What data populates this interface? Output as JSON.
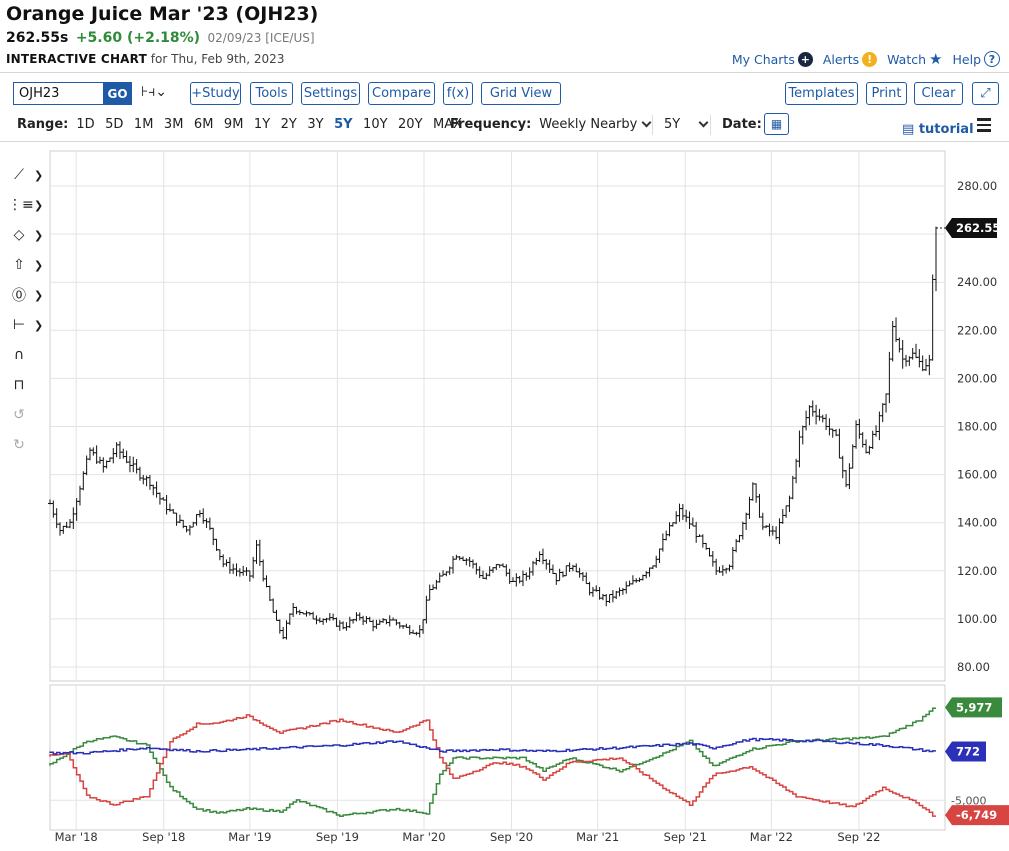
{
  "header": {
    "title": "Orange Juice Mar '23 (OJH23)",
    "last": "262.55s",
    "change": "+5.60 (+2.18%)",
    "meta": "02/09/23 [ICE/US]",
    "chart_label": "INTERACTIVE CHART",
    "chart_for": "for Thu, Feb 9th, 2023",
    "links": {
      "my_charts": "My Charts",
      "alerts": "Alerts",
      "watch": "Watch",
      "help": "Help"
    }
  },
  "toolbar": {
    "symbol": "OJH23",
    "go": "GO",
    "study": "+Study",
    "tools": "Tools",
    "settings": "Settings",
    "compare": "Compare",
    "fx": "f(x)",
    "grid_view": "Grid View",
    "templates": "Templates",
    "print": "Print",
    "clear": "Clear"
  },
  "rangebar": {
    "range_label": "Range:",
    "ranges": [
      "1D",
      "5D",
      "1M",
      "3M",
      "6M",
      "9M",
      "1Y",
      "2Y",
      "3Y",
      "5Y",
      "10Y",
      "20Y",
      "MAX"
    ],
    "active": "5Y",
    "frequency_label": "Frequency:",
    "frequency": "Weekly Nearby",
    "period": "5Y",
    "date_label": "Date:",
    "tutorial": "tutorial"
  },
  "icons": [
    "trendline-icon",
    "fibonacci-icon",
    "shapes-icon",
    "arrow-icon",
    "marker-icon",
    "measure-icon",
    "magnet-icon",
    "unlock-icon",
    "undo-icon",
    "redo-icon",
    "calendar-icon",
    "menu-icon",
    "plus-icon",
    "alert-icon",
    "star-icon",
    "help-icon",
    "expand-icon",
    "chart-type-icon"
  ],
  "colors": {
    "accent": "#1f5aa6",
    "up": "#2e8b3a",
    "commercials": "#3a8a3e",
    "noncommercials": "#d64541",
    "small": "#2a31b8",
    "price": "#111111"
  },
  "chart_data": [
    {
      "type": "ohlc",
      "frequency": "weekly",
      "ylim": [
        80,
        280
      ],
      "yticks": [
        "80.00",
        "100.00",
        "120.00",
        "140.00",
        "160.00",
        "180.00",
        "200.00",
        "220.00",
        "240.00",
        "260.00",
        "280.00"
      ],
      "xticks": [
        "Mar '18",
        "Sep '18",
        "Mar '19",
        "Sep '19",
        "Mar '20",
        "Sep '20",
        "Mar '21",
        "Sep '21",
        "Mar '22",
        "Sep '22"
      ],
      "last_label": "262.55",
      "anchors": [
        [
          "2018-01-05",
          148
        ],
        [
          "2018-01-26",
          137
        ],
        [
          "2018-02-16",
          140
        ],
        [
          "2018-03-09",
          155
        ],
        [
          "2018-03-30",
          170
        ],
        [
          "2018-04-27",
          163
        ],
        [
          "2018-05-25",
          171
        ],
        [
          "2018-06-15",
          166
        ],
        [
          "2018-07-13",
          160
        ],
        [
          "2018-08-03",
          157
        ],
        [
          "2018-08-24",
          150
        ],
        [
          "2018-09-21",
          143
        ],
        [
          "2018-10-19",
          137
        ],
        [
          "2018-11-16",
          145
        ],
        [
          "2018-12-07",
          137
        ],
        [
          "2019-01-04",
          123
        ],
        [
          "2019-02-01",
          120
        ],
        [
          "2019-03-01",
          118
        ],
        [
          "2019-03-15",
          130
        ],
        [
          "2019-04-05",
          112
        ],
        [
          "2019-04-26",
          98
        ],
        [
          "2019-05-10",
          93
        ],
        [
          "2019-05-31",
          105
        ],
        [
          "2019-07-05",
          101
        ],
        [
          "2019-08-09",
          100
        ],
        [
          "2019-09-13",
          97
        ],
        [
          "2019-10-18",
          101
        ],
        [
          "2019-11-22",
          97
        ],
        [
          "2019-12-20",
          100
        ],
        [
          "2020-01-24",
          96
        ],
        [
          "2020-02-21",
          95
        ],
        [
          "2020-03-13",
          112
        ],
        [
          "2020-04-10",
          118
        ],
        [
          "2020-05-08",
          127
        ],
        [
          "2020-06-05",
          124
        ],
        [
          "2020-07-03",
          117
        ],
        [
          "2020-08-07",
          123
        ],
        [
          "2020-09-04",
          115
        ],
        [
          "2020-10-02",
          118
        ],
        [
          "2020-10-30",
          128
        ],
        [
          "2020-12-04",
          117
        ],
        [
          "2021-01-08",
          123
        ],
        [
          "2021-02-12",
          112
        ],
        [
          "2021-03-19",
          108
        ],
        [
          "2021-04-23",
          112
        ],
        [
          "2021-05-21",
          116
        ],
        [
          "2021-06-25",
          123
        ],
        [
          "2021-07-23",
          135
        ],
        [
          "2021-08-20",
          145
        ],
        [
          "2021-09-17",
          138
        ],
        [
          "2021-10-15",
          128
        ],
        [
          "2021-11-05",
          120
        ],
        [
          "2021-12-03",
          123
        ],
        [
          "2021-12-31",
          140
        ],
        [
          "2022-01-21",
          155
        ],
        [
          "2022-02-11",
          138
        ],
        [
          "2022-03-11",
          135
        ],
        [
          "2022-04-08",
          150
        ],
        [
          "2022-04-29",
          175
        ],
        [
          "2022-05-20",
          188
        ],
        [
          "2022-06-17",
          183
        ],
        [
          "2022-07-15",
          175
        ],
        [
          "2022-08-05",
          155
        ],
        [
          "2022-08-26",
          180
        ],
        [
          "2022-09-16",
          170
        ],
        [
          "2022-10-07",
          178
        ],
        [
          "2022-10-28",
          193
        ],
        [
          "2022-11-11",
          222
        ],
        [
          "2022-12-02",
          208
        ],
        [
          "2022-12-23",
          210
        ],
        [
          "2023-01-13",
          205
        ],
        [
          "2023-01-27",
          207
        ],
        [
          "2023-02-03",
          240
        ],
        [
          "2023-02-10",
          262.55
        ]
      ]
    },
    {
      "type": "line",
      "title": "COT",
      "yticks": [
        "-5,000"
      ],
      "series": [
        {
          "color": "#3a8a3e",
          "last": "5,977",
          "points": [
            [
              "2018-01-05",
              -1000
            ],
            [
              "2018-02-16",
              500
            ],
            [
              "2018-03-30",
              2000
            ],
            [
              "2018-05-25",
              2500
            ],
            [
              "2018-08-03",
              1500
            ],
            [
              "2018-09-21",
              -3500
            ],
            [
              "2018-11-16",
              -6000
            ],
            [
              "2019-01-04",
              -6500
            ],
            [
              "2019-03-01",
              -6000
            ],
            [
              "2019-05-10",
              -6300
            ],
            [
              "2019-06-14",
              -5000
            ],
            [
              "2019-09-13",
              -6800
            ],
            [
              "2020-01-10",
              -6000
            ],
            [
              "2020-03-13",
              -6500
            ],
            [
              "2020-04-10",
              -2000
            ],
            [
              "2020-05-08",
              0
            ],
            [
              "2020-08-07",
              0
            ],
            [
              "2020-10-02",
              0
            ],
            [
              "2020-11-13",
              -1500
            ],
            [
              "2021-01-08",
              0
            ],
            [
              "2021-04-23",
              -1500
            ],
            [
              "2021-07-23",
              500
            ],
            [
              "2021-09-17",
              2000
            ],
            [
              "2021-11-05",
              -1000
            ],
            [
              "2022-01-21",
              1000
            ],
            [
              "2022-04-29",
              2000
            ],
            [
              "2022-08-26",
              2300
            ],
            [
              "2022-10-28",
              2500
            ],
            [
              "2023-01-13",
              4500
            ],
            [
              "2023-02-10",
              5977
            ]
          ]
        },
        {
          "color": "#d64541",
          "last": "-6,749",
          "points": [
            [
              "2018-01-05",
              200
            ],
            [
              "2018-02-16",
              500
            ],
            [
              "2018-03-30",
              -4500
            ],
            [
              "2018-05-25",
              -5500
            ],
            [
              "2018-08-03",
              -4500
            ],
            [
              "2018-09-21",
              2000
            ],
            [
              "2018-11-16",
              4000
            ],
            [
              "2019-01-04",
              4200
            ],
            [
              "2019-03-01",
              5000
            ],
            [
              "2019-05-10",
              3000
            ],
            [
              "2019-09-13",
              4500
            ],
            [
              "2020-01-10",
              3000
            ],
            [
              "2020-03-13",
              4500
            ],
            [
              "2020-04-10",
              0
            ],
            [
              "2020-05-08",
              -2500
            ],
            [
              "2020-08-07",
              -500
            ],
            [
              "2020-10-02",
              -1000
            ],
            [
              "2020-11-13",
              -2500
            ],
            [
              "2021-01-08",
              -500
            ],
            [
              "2021-04-23",
              0
            ],
            [
              "2021-07-23",
              -3500
            ],
            [
              "2021-09-17",
              -5500
            ],
            [
              "2021-11-05",
              -2000
            ],
            [
              "2022-01-21",
              -1000
            ],
            [
              "2022-04-29",
              -4500
            ],
            [
              "2022-08-26",
              -5800
            ],
            [
              "2022-10-28",
              -3500
            ],
            [
              "2023-01-13",
              -5500
            ],
            [
              "2023-02-10",
              -6749
            ]
          ]
        },
        {
          "color": "#2a31b8",
          "last": "772",
          "points": [
            [
              "2018-01-05",
              600
            ],
            [
              "2018-03-30",
              600
            ],
            [
              "2018-08-03",
              1200
            ],
            [
              "2018-11-16",
              800
            ],
            [
              "2019-03-01",
              1000
            ],
            [
              "2019-09-13",
              1500
            ],
            [
              "2020-01-10",
              2000
            ],
            [
              "2020-04-10",
              800
            ],
            [
              "2020-08-07",
              1000
            ],
            [
              "2020-11-13",
              800
            ],
            [
              "2021-04-23",
              1200
            ],
            [
              "2021-09-17",
              1700
            ],
            [
              "2021-11-05",
              1200
            ],
            [
              "2022-01-21",
              2200
            ],
            [
              "2022-06-17",
              2000
            ],
            [
              "2022-10-28",
              1500
            ],
            [
              "2023-02-10",
              772
            ]
          ]
        }
      ]
    }
  ]
}
